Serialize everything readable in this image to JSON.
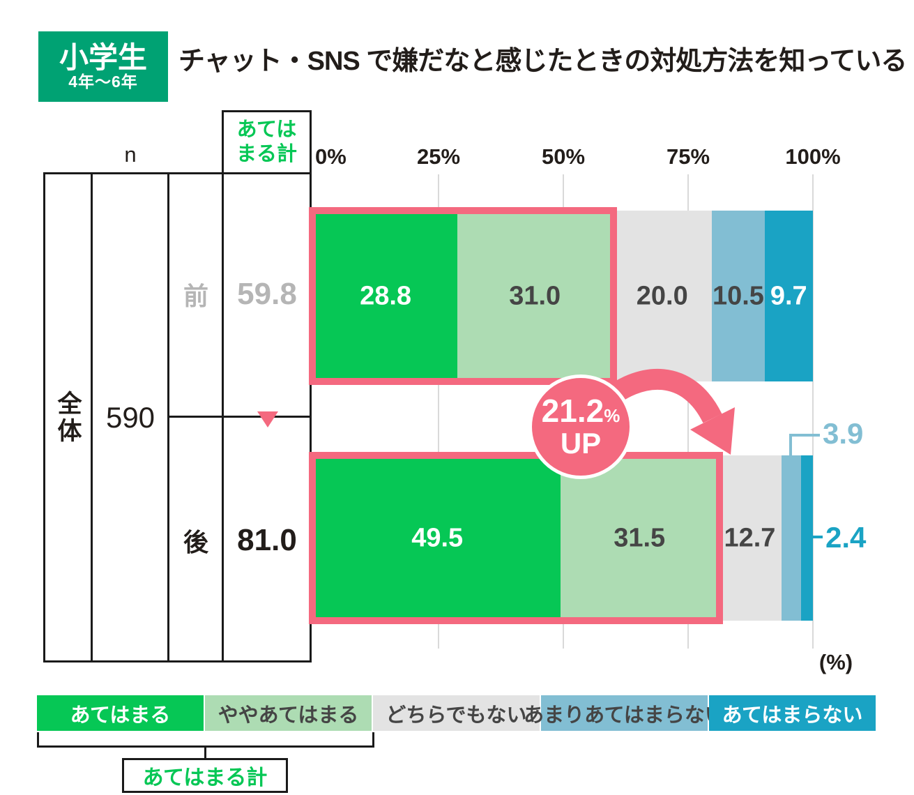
{
  "header": {
    "badge_title": "小学生",
    "badge_subtitle": "4年〜6年",
    "title": "チャット・SNS で嫌だなと感じたときの対処方法を知っている"
  },
  "table": {
    "n_label": "n",
    "group_label": "全体",
    "n_value": "590",
    "col_header_line1": "あては",
    "col_header_line2": "まる計",
    "rows": [
      {
        "label": "前",
        "total": "59.8"
      },
      {
        "label": "後",
        "total": "81.0"
      }
    ]
  },
  "axis": {
    "ticks": [
      "0%",
      "25%",
      "50%",
      "75%",
      "100%"
    ],
    "unit": "(%)"
  },
  "badge": {
    "value": "21.2",
    "unit": "%",
    "label": "UP"
  },
  "legend": {
    "group_label": "あてはまる計"
  },
  "colors": {
    "badge_green": "#00a273",
    "pink": "#f4697f",
    "grid": "#d9d9d9",
    "muted_text": "#b5b5b5",
    "dark_text": "#221d1a"
  },
  "chart_data": {
    "type": "bar",
    "orientation": "horizontal",
    "stacked": true,
    "title": "チャット・SNS で嫌だなと感じたときの対処方法を知っている",
    "group": "全体",
    "n": 590,
    "categories": [
      "前",
      "後"
    ],
    "series": [
      {
        "name": "あてはまる",
        "values": [
          28.8,
          49.5
        ],
        "color": "#06c755",
        "text_color": "#ffffff"
      },
      {
        "name": "ややあてはまる",
        "values": [
          31.0,
          31.5
        ],
        "color": "#addcb3",
        "text_color": "#454545"
      },
      {
        "name": "どちらでもない",
        "values": [
          20.0,
          12.7
        ],
        "color": "#e3e3e3",
        "text_color": "#454545"
      },
      {
        "name": "あまりあてはまらない",
        "values": [
          10.5,
          3.9
        ],
        "color": "#82bed3",
        "text_color": "#454545"
      },
      {
        "name": "あてはまらない",
        "values": [
          9.7,
          2.4
        ],
        "color": "#1aa3c4",
        "text_color": "#ffffff"
      }
    ],
    "totals": {
      "label": "あてはまる計",
      "values": [
        59.8,
        81.0
      ]
    },
    "change_annotation": "21.2% UP",
    "xlim": [
      0,
      100
    ],
    "grid": true,
    "legend_position": "bottom"
  }
}
